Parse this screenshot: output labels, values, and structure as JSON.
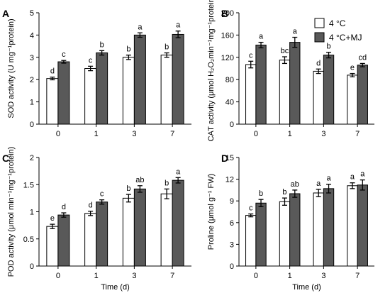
{
  "legend": {
    "items": [
      {
        "label": "4 °C",
        "color": "#ffffff"
      },
      {
        "label": "4 °C+MJ",
        "color": "#595959"
      }
    ]
  },
  "chart_data": [
    {
      "panel": "A",
      "type": "bar",
      "title": "",
      "ylabel": "SOD activity (U mg⁻¹protein)",
      "xlabel": "",
      "categories": [
        "0",
        "1",
        "3",
        "7"
      ],
      "ylim": [
        0,
        5
      ],
      "yticks": [
        "0",
        "1",
        "2",
        "3",
        "4",
        "5"
      ],
      "series": [
        {
          "values": [
            2.05,
            2.5,
            3.0,
            3.1
          ],
          "errors": [
            0.06,
            0.1,
            0.1,
            0.1
          ],
          "letters": [
            "d",
            "c",
            "b",
            "b"
          ]
        },
        {
          "values": [
            2.8,
            3.2,
            4.0,
            4.03
          ],
          "errors": [
            0.06,
            0.1,
            0.1,
            0.15
          ],
          "letters": [
            "c",
            "b",
            "a",
            "a"
          ]
        }
      ],
      "legend": "top-right",
      "grid": false
    },
    {
      "panel": "B",
      "type": "bar",
      "title": "",
      "ylabel": "CAT activity (μmol H₂O₂min⁻¹mg⁻¹protein)",
      "xlabel": "",
      "categories": [
        "0",
        "1",
        "3",
        "7"
      ],
      "ylim": [
        0,
        200
      ],
      "yticks": [
        "0",
        "40",
        "80",
        "120",
        "160",
        "200"
      ],
      "series": [
        {
          "values": [
            107,
            115,
            95,
            88
          ],
          "errors": [
            6,
            6,
            4,
            3
          ],
          "letters": [
            "c",
            "bc",
            "d",
            "e"
          ]
        },
        {
          "values": [
            142,
            147,
            124,
            106
          ],
          "errors": [
            5,
            9,
            5,
            3
          ],
          "letters": [
            "a",
            "a",
            "b",
            "cd"
          ]
        }
      ],
      "grid": false
    },
    {
      "panel": "C",
      "type": "bar",
      "title": "",
      "ylabel": "POD activity (μmol min⁻¹mg⁻¹protein)",
      "xlabel": "Time (d)",
      "categories": [
        "0",
        "1",
        "3",
        "7"
      ],
      "ylim": [
        0,
        2
      ],
      "yticks": [
        "0",
        "0.5",
        "1",
        "1.5",
        "2"
      ],
      "series": [
        {
          "values": [
            0.73,
            0.97,
            1.25,
            1.33
          ],
          "errors": [
            0.04,
            0.04,
            0.07,
            0.09
          ],
          "letters": [
            "e",
            "d",
            "b",
            "b"
          ]
        },
        {
          "values": [
            0.94,
            1.18,
            1.42,
            1.58
          ],
          "errors": [
            0.04,
            0.04,
            0.06,
            0.05
          ],
          "letters": [
            "d",
            "c",
            "ab",
            "a"
          ]
        }
      ],
      "grid": false
    },
    {
      "panel": "D",
      "type": "bar",
      "title": "",
      "ylabel": "Proline (μmol g⁻¹ FW)",
      "xlabel": "Time (d)",
      "categories": [
        "0",
        "1",
        "3",
        "7"
      ],
      "ylim": [
        0,
        15
      ],
      "yticks": [
        "0",
        "3",
        "6",
        "9",
        "12",
        "15"
      ],
      "series": [
        {
          "values": [
            7.0,
            8.9,
            10.1,
            11.1
          ],
          "errors": [
            0.2,
            0.5,
            0.5,
            0.4
          ],
          "letters": [
            "c",
            "b",
            "a",
            "a"
          ]
        },
        {
          "values": [
            8.7,
            10.0,
            10.7,
            11.2
          ],
          "errors": [
            0.5,
            0.5,
            0.6,
            0.7
          ],
          "letters": [
            "b",
            "ab",
            "a",
            "a"
          ]
        }
      ],
      "grid": false
    }
  ]
}
